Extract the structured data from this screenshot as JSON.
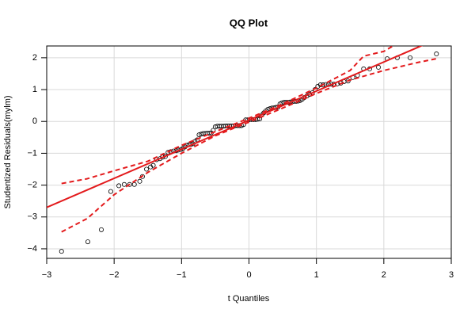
{
  "chart_data": {
    "type": "qq",
    "title": "QQ Plot",
    "x_label": "t Quantiles",
    "y_label": "Studentized Residuals(mylm)",
    "xlim": [
      -3,
      3
    ],
    "ylim": [
      -4.3,
      2.37
    ],
    "xticks": [
      {
        "value": -3,
        "label": "−3"
      },
      {
        "value": -2,
        "label": "−2"
      },
      {
        "value": -1,
        "label": "−1"
      },
      0,
      1,
      2,
      3
    ],
    "yticks": [
      {
        "value": -4,
        "label": "−4"
      },
      {
        "value": -3,
        "label": "−3"
      },
      {
        "value": -2,
        "label": "−2"
      },
      {
        "value": -1,
        "label": "−1"
      },
      0,
      1,
      2
    ],
    "grid": true,
    "marker_color": "#000000",
    "x": [
      -2.78,
      -2.39,
      -2.19,
      -2.05,
      -1.93,
      -1.85,
      -1.77,
      -1.7,
      -1.62,
      -1.58,
      -1.52,
      -1.46,
      -1.42,
      -1.37,
      -1.32,
      -1.28,
      -1.24,
      -1.2,
      -1.16,
      -1.12,
      -1.08,
      -1.05,
      -1.01,
      -0.98,
      -0.95,
      -0.92,
      -0.89,
      -0.86,
      -0.83,
      -0.8,
      -0.77,
      -0.74,
      -0.71,
      -0.68,
      -0.65,
      -0.62,
      -0.59,
      -0.56,
      -0.53,
      -0.5,
      -0.47,
      -0.44,
      -0.41,
      -0.38,
      -0.35,
      -0.32,
      -0.29,
      -0.26,
      -0.23,
      -0.2,
      -0.17,
      -0.14,
      -0.11,
      -0.08,
      -0.05,
      -0.02,
      0.01,
      0.04,
      0.07,
      0.1,
      0.13,
      0.16,
      0.19,
      0.22,
      0.25,
      0.28,
      0.31,
      0.34,
      0.37,
      0.4,
      0.43,
      0.46,
      0.49,
      0.52,
      0.55,
      0.58,
      0.61,
      0.64,
      0.67,
      0.7,
      0.73,
      0.76,
      0.79,
      0.82,
      0.86,
      0.9,
      0.94,
      0.98,
      1.02,
      1.06,
      1.1,
      1.14,
      1.18,
      1.22,
      1.26,
      1.31,
      1.36,
      1.41,
      1.47,
      1.54,
      1.61,
      1.7,
      1.79,
      1.92,
      2.05,
      2.2,
      2.39,
      2.78
    ],
    "values": [
      -4.08,
      -3.78,
      -3.4,
      -2.2,
      -2.02,
      -1.98,
      -1.98,
      -1.98,
      -1.88,
      -1.73,
      -1.5,
      -1.43,
      -1.38,
      -1.2,
      -1.17,
      -1.12,
      -1.1,
      -0.97,
      -0.95,
      -0.93,
      -0.92,
      -0.9,
      -0.88,
      -0.85,
      -0.8,
      -0.75,
      -0.73,
      -0.72,
      -0.7,
      -0.63,
      -0.58,
      -0.42,
      -0.4,
      -0.38,
      -0.38,
      -0.37,
      -0.37,
      -0.36,
      -0.28,
      -0.17,
      -0.15,
      -0.15,
      -0.15,
      -0.15,
      -0.14,
      -0.14,
      -0.14,
      -0.14,
      -0.14,
      -0.13,
      -0.13,
      -0.13,
      -0.13,
      -0.1,
      0.05,
      0.05,
      0.06,
      0.06,
      0.06,
      0.06,
      0.07,
      0.08,
      0.2,
      0.27,
      0.33,
      0.38,
      0.4,
      0.42,
      0.43,
      0.44,
      0.45,
      0.55,
      0.58,
      0.6,
      0.6,
      0.6,
      0.61,
      0.62,
      0.63,
      0.63,
      0.64,
      0.66,
      0.7,
      0.75,
      0.8,
      0.85,
      0.9,
      1.0,
      1.1,
      1.15,
      1.15,
      1.16,
      1.16,
      1.17,
      1.17,
      1.18,
      1.2,
      1.25,
      1.27,
      1.38,
      1.45,
      1.65,
      1.65,
      1.7,
      1.97,
      2.0,
      2.0,
      2.12
    ],
    "reference_line": {
      "x": [
        -3,
        3
      ],
      "values": [
        -2.7,
        2.78
      ],
      "color": "#e31a1c"
    },
    "envelope": [
      {
        "x": [
          -2.78,
          -2.4,
          -2,
          -1.5,
          -1,
          -0.5,
          0,
          0.5,
          1,
          1.5,
          1.7,
          2,
          2.2
        ],
        "values": [
          -1.95,
          -1.8,
          -1.55,
          -1.25,
          -0.75,
          -0.32,
          0.1,
          0.55,
          1.05,
          1.6,
          2.05,
          2.2,
          2.45
        ],
        "color": "#e31a1c"
      },
      {
        "x": [
          -2.78,
          -2.4,
          -2,
          -1.5,
          -1,
          -0.5,
          0,
          0.5,
          1,
          1.5,
          2,
          2.5,
          2.78
        ],
        "values": [
          -3.47,
          -3.05,
          -2.3,
          -1.6,
          -1.0,
          -0.45,
          -0.02,
          0.42,
          0.88,
          1.3,
          1.6,
          1.85,
          1.97
        ],
        "color": "#e31a1c"
      }
    ]
  }
}
